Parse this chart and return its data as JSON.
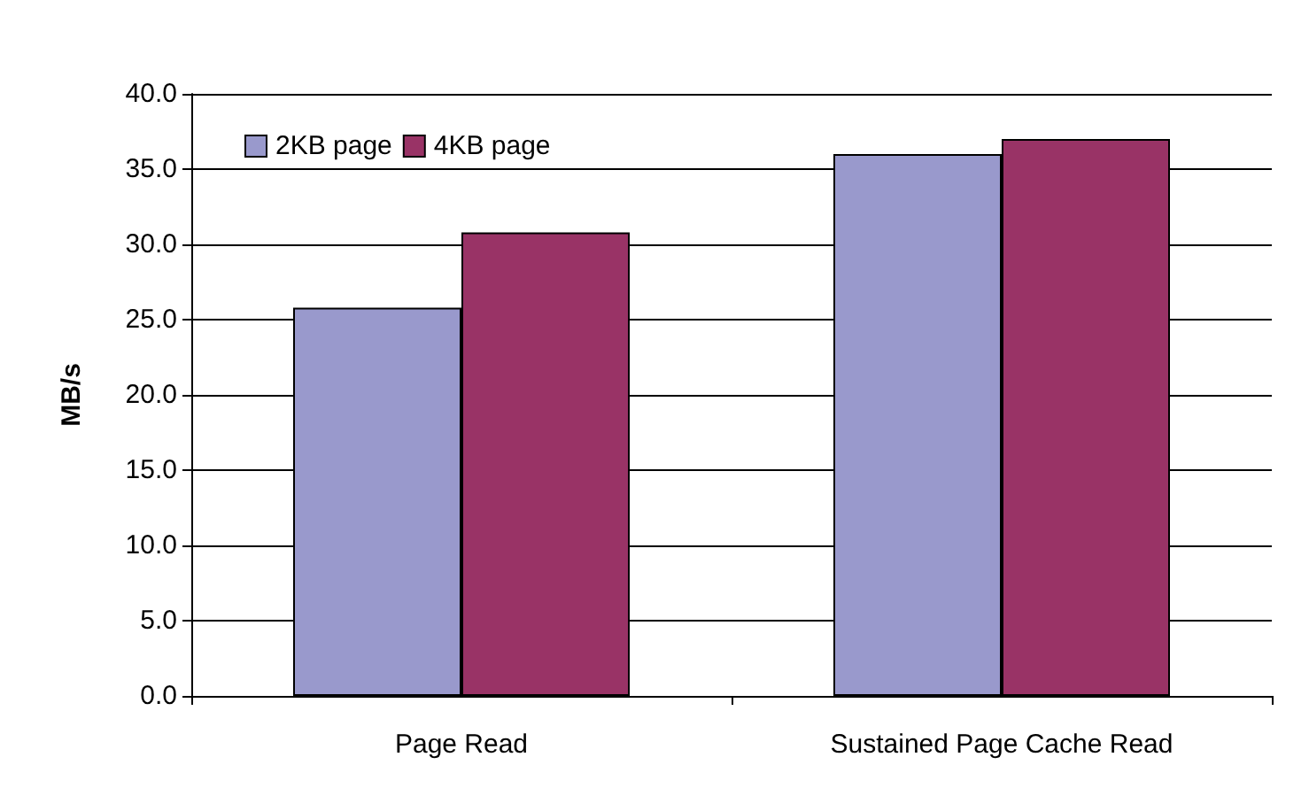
{
  "chart_data": {
    "type": "bar",
    "ylabel": "MB/s",
    "categories": [
      "Page Read",
      "Sustained Page Cache Read"
    ],
    "series": [
      {
        "name": "2KB page",
        "color": "#9999cc",
        "values": [
          25.8,
          36.0
        ]
      },
      {
        "name": "4KB page",
        "color": "#993366",
        "values": [
          30.8,
          37.0
        ]
      }
    ],
    "ylim": [
      0,
      40
    ],
    "yticks": [
      {
        "value": 0,
        "label": "0.0"
      },
      {
        "value": 5,
        "label": "5.0"
      },
      {
        "value": 10,
        "label": "10.0"
      },
      {
        "value": 15,
        "label": "15.0"
      },
      {
        "value": 20,
        "label": "20.0"
      },
      {
        "value": 25,
        "label": "25.0"
      },
      {
        "value": 30,
        "label": "30.0"
      },
      {
        "value": 35,
        "label": "35.0"
      },
      {
        "value": 40,
        "label": "40.0"
      }
    ],
    "grid": "y",
    "legend": "top left"
  }
}
